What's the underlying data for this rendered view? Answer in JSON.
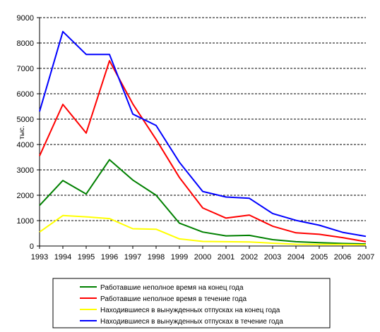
{
  "chart_data": {
    "type": "line",
    "title": "",
    "xlabel": "",
    "ylabel": "тыс.",
    "x": [
      1993,
      1994,
      1995,
      1996,
      1997,
      1998,
      1999,
      2000,
      2001,
      2002,
      2003,
      2004,
      2005,
      2006,
      2007
    ],
    "ylim": [
      0,
      9000
    ],
    "yticks": [
      0,
      1000,
      2000,
      3000,
      4000,
      5000,
      6000,
      7000,
      8000,
      9000
    ],
    "grid": "horizontal dashed",
    "legend_position": "bottom",
    "series": [
      {
        "name": "Работавшие неполное время на конец года",
        "color": "#008000",
        "values": [
          1600,
          2580,
          2050,
          3400,
          2600,
          2000,
          900,
          550,
          400,
          420,
          250,
          170,
          130,
          100,
          80
        ]
      },
      {
        "name": "Работавшие неполное время в течение года",
        "color": "#ff0000",
        "values": [
          3550,
          5580,
          4450,
          7300,
          5600,
          4200,
          2700,
          1500,
          1100,
          1220,
          780,
          520,
          460,
          330,
          170
        ]
      },
      {
        "name": "Находившиеся в вынужденных отпусках на конец года",
        "color": "#ffff00",
        "values": [
          550,
          1200,
          1150,
          1080,
          680,
          660,
          280,
          180,
          170,
          160,
          110,
          70,
          60,
          60,
          50
        ]
      },
      {
        "name": "Находившиеся в вынужденных отпусках в течение года",
        "color": "#0000ff",
        "values": [
          5300,
          8450,
          7550,
          7550,
          5200,
          4750,
          3300,
          2150,
          1930,
          1880,
          1280,
          1010,
          820,
          540,
          380
        ]
      }
    ]
  }
}
